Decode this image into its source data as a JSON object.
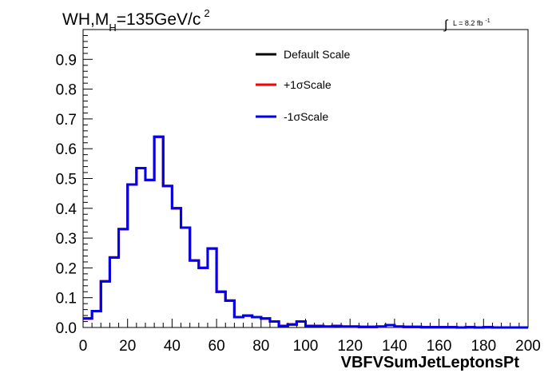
{
  "chart_data": {
    "type": "line",
    "title": {
      "prefix": "WH,M",
      "sub": "H",
      "main": "=135GeV/c",
      "sup": "2"
    },
    "lumi": {
      "text": "L = 8.2 fb",
      "sup": "-1"
    },
    "xlabel": "VBFVSumJetLeptonsPt",
    "ylabel": "",
    "xlim": [
      0,
      200
    ],
    "ylim": [
      0,
      1.0
    ],
    "x_ticks": [
      "0",
      "20",
      "40",
      "60",
      "80",
      "100",
      "120",
      "140",
      "160",
      "180",
      "200"
    ],
    "y_ticks": [
      "0.0",
      "0.1",
      "0.2",
      "0.3",
      "0.4",
      "0.5",
      "0.6",
      "0.7",
      "0.8",
      "0.9"
    ],
    "legend_position": "top-center",
    "bin_edges": [
      0,
      4,
      8,
      12,
      16,
      20,
      24,
      28,
      32,
      36,
      40,
      44,
      48,
      52,
      56,
      60,
      64,
      68,
      72,
      76,
      80,
      84,
      88,
      92,
      96,
      100,
      104,
      108,
      112,
      116,
      120,
      124,
      128,
      132,
      136,
      140,
      144,
      148,
      152,
      156,
      160,
      164,
      168,
      172,
      176,
      180,
      184,
      188,
      192,
      196,
      200
    ],
    "series": [
      {
        "name": "Default Scale",
        "color": "#000000",
        "values": [
          0.03,
          0.055,
          0.155,
          0.235,
          0.33,
          0.48,
          0.535,
          0.495,
          0.64,
          0.475,
          0.4,
          0.335,
          0.225,
          0.2,
          0.265,
          0.12,
          0.09,
          0.035,
          0.04,
          0.035,
          0.03,
          0.02,
          0.005,
          0.01,
          0.02,
          0.005,
          0.005,
          0.003,
          0.005,
          0.003,
          0.003,
          0.002,
          0.002,
          0.003,
          0.008,
          0.003,
          0.002,
          0.002,
          0.001,
          0.001,
          0.001,
          0.001,
          0.0,
          0.001,
          0.0,
          0.001,
          0.0,
          0.0,
          0.0,
          0.0
        ]
      },
      {
        "name": "+1σScale",
        "color": "#ff0000",
        "values": [
          0.03,
          0.055,
          0.155,
          0.235,
          0.33,
          0.48,
          0.535,
          0.495,
          0.64,
          0.475,
          0.4,
          0.335,
          0.225,
          0.2,
          0.265,
          0.12,
          0.09,
          0.035,
          0.04,
          0.035,
          0.03,
          0.02,
          0.005,
          0.01,
          0.02,
          0.005,
          0.005,
          0.003,
          0.005,
          0.003,
          0.003,
          0.002,
          0.002,
          0.003,
          0.008,
          0.003,
          0.002,
          0.002,
          0.001,
          0.001,
          0.001,
          0.001,
          0.0,
          0.001,
          0.0,
          0.001,
          0.0,
          0.0,
          0.0,
          0.0
        ]
      },
      {
        "name": "-1σScale",
        "color": "#0000ee",
        "values": [
          0.03,
          0.055,
          0.155,
          0.235,
          0.33,
          0.48,
          0.535,
          0.495,
          0.64,
          0.475,
          0.4,
          0.335,
          0.225,
          0.2,
          0.265,
          0.12,
          0.09,
          0.035,
          0.04,
          0.035,
          0.03,
          0.02,
          0.005,
          0.01,
          0.02,
          0.005,
          0.005,
          0.003,
          0.005,
          0.003,
          0.003,
          0.002,
          0.002,
          0.003,
          0.008,
          0.003,
          0.002,
          0.002,
          0.001,
          0.001,
          0.001,
          0.001,
          0.0,
          0.001,
          0.0,
          0.001,
          0.0,
          0.0,
          0.0,
          0.0
        ]
      }
    ]
  }
}
